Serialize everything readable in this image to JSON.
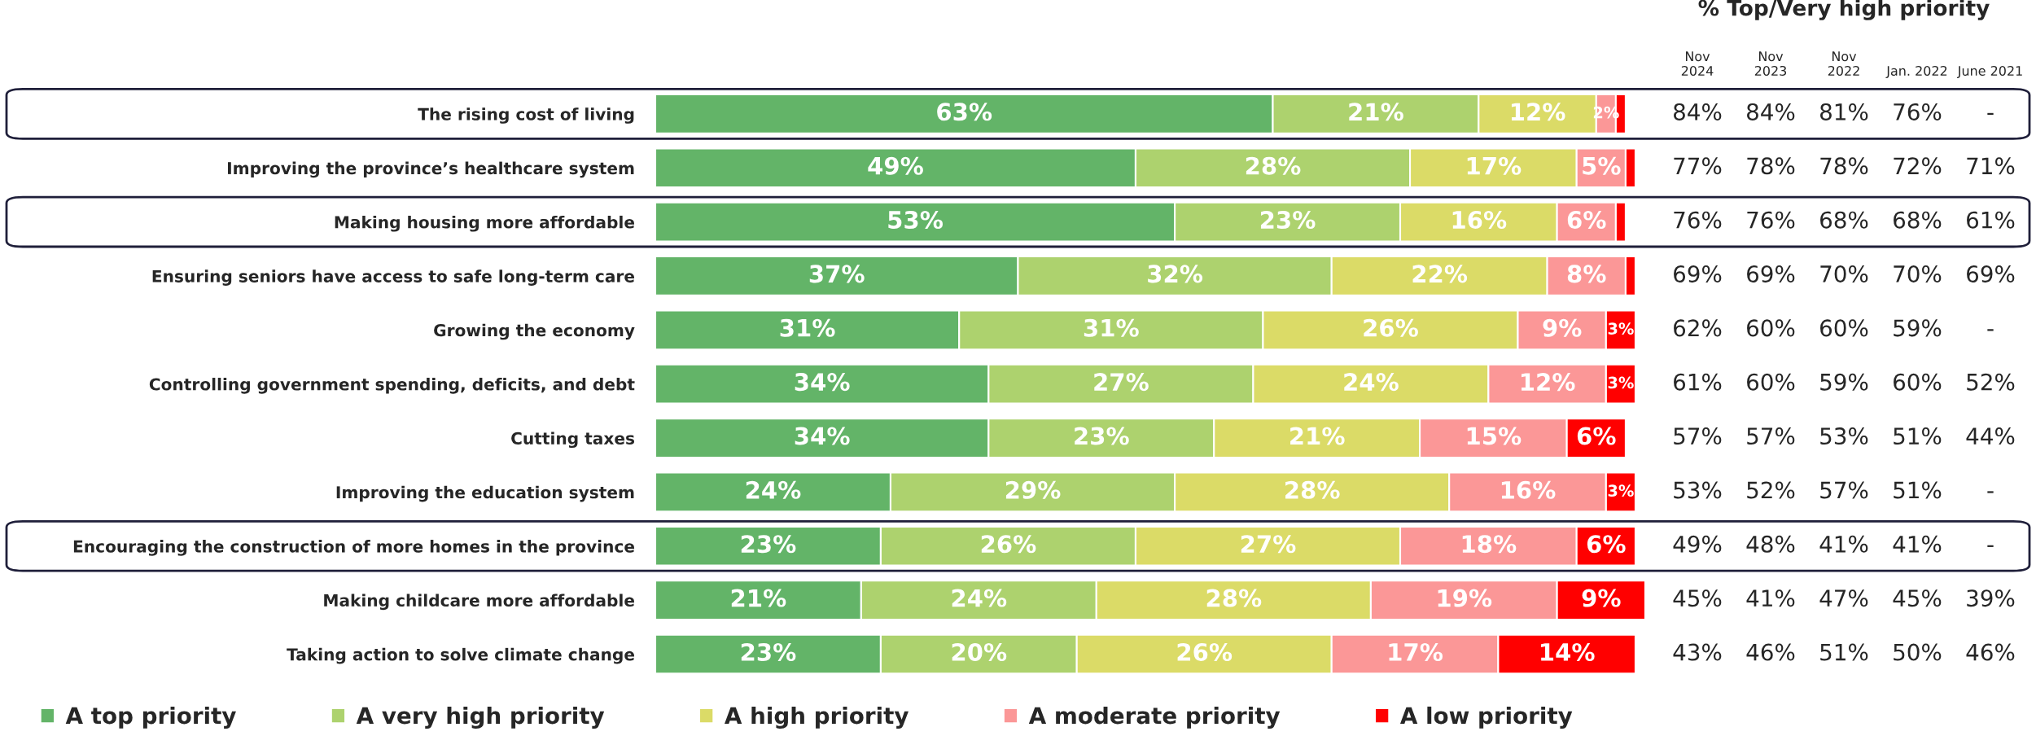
{
  "chart_data": [
    {
      "type": "bar",
      "orientation": "horizontal",
      "stacked": true,
      "legend": "bottom",
      "grid": false,
      "categories": [
        "The rising cost of living",
        "Improving the province’s healthcare system",
        "Making housing more affordable",
        "Ensuring seniors have access to safe long-term care",
        "Growing the economy",
        "Controlling government spending, deficits, and debt",
        "Cutting taxes",
        "Improving the education system",
        "Encouraging the construction of more homes in the province",
        "Making childcare more affordable",
        "Taking action to solve climate change"
      ],
      "series": [
        {
          "name": "A top priority",
          "color": "#63b468",
          "values": [
            63,
            49,
            53,
            37,
            31,
            34,
            34,
            24,
            23,
            21,
            23
          ],
          "value_labels": [
            "63%",
            "49%",
            "53%",
            "37%",
            "31%",
            "34%",
            "34%",
            "24%",
            "23%",
            "21%",
            "23%"
          ]
        },
        {
          "name": "A very high priority",
          "color": "#add26e",
          "values": [
            21,
            28,
            23,
            32,
            31,
            27,
            23,
            29,
            26,
            24,
            20
          ],
          "value_labels": [
            "21%",
            "28%",
            "23%",
            "32%",
            "31%",
            "27%",
            "23%",
            "29%",
            "26%",
            "24%",
            "20%"
          ]
        },
        {
          "name": "A high priority",
          "color": "#dbdb67",
          "values": [
            12,
            17,
            16,
            22,
            26,
            24,
            21,
            28,
            27,
            28,
            26
          ],
          "value_labels": [
            "12%",
            "17%",
            "16%",
            "22%",
            "26%",
            "24%",
            "21%",
            "28%",
            "27%",
            "28%",
            "26%"
          ]
        },
        {
          "name": "A moderate priority",
          "color": "#fb9797",
          "values": [
            2,
            5,
            6,
            8,
            9,
            12,
            15,
            16,
            18,
            19,
            17
          ],
          "value_labels": [
            "2%",
            "5%",
            "6%",
            "8%",
            "9%",
            "12%",
            "15%",
            "16%",
            "18%",
            "19%",
            "17%"
          ]
        },
        {
          "name": "A low priority",
          "color": "#ff0000",
          "values": [
            1,
            1,
            1,
            1,
            3,
            3,
            6,
            3,
            6,
            9,
            14
          ],
          "value_labels": [
            null,
            null,
            null,
            null,
            "3%",
            "3%",
            "6%",
            "3%",
            "6%",
            "9%",
            "14%"
          ]
        }
      ]
    },
    {
      "type": "other",
      "title": "% Top/Very high priority",
      "categories": [
        "Nov\n2024",
        "Nov\n2023",
        "Nov\n2022",
        "Jan. 2022",
        "June 2021"
      ],
      "cell_labels": [
        [
          "84%",
          "84%",
          "81%",
          "76%",
          "-"
        ],
        [
          "77%",
          "78%",
          "78%",
          "72%",
          "71%"
        ],
        [
          "76%",
          "76%",
          "68%",
          "68%",
          "61%"
        ],
        [
          "69%",
          "69%",
          "70%",
          "70%",
          "69%"
        ],
        [
          "62%",
          "60%",
          "60%",
          "59%",
          "-"
        ],
        [
          "61%",
          "60%",
          "59%",
          "60%",
          "52%"
        ],
        [
          "57%",
          "57%",
          "53%",
          "51%",
          "44%"
        ],
        [
          "53%",
          "52%",
          "57%",
          "51%",
          "-"
        ],
        [
          "49%",
          "48%",
          "41%",
          "41%",
          "-"
        ],
        [
          "45%",
          "41%",
          "47%",
          "45%",
          "39%"
        ],
        [
          "43%",
          "46%",
          "51%",
          "50%",
          "46%"
        ]
      ]
    }
  ]
}
